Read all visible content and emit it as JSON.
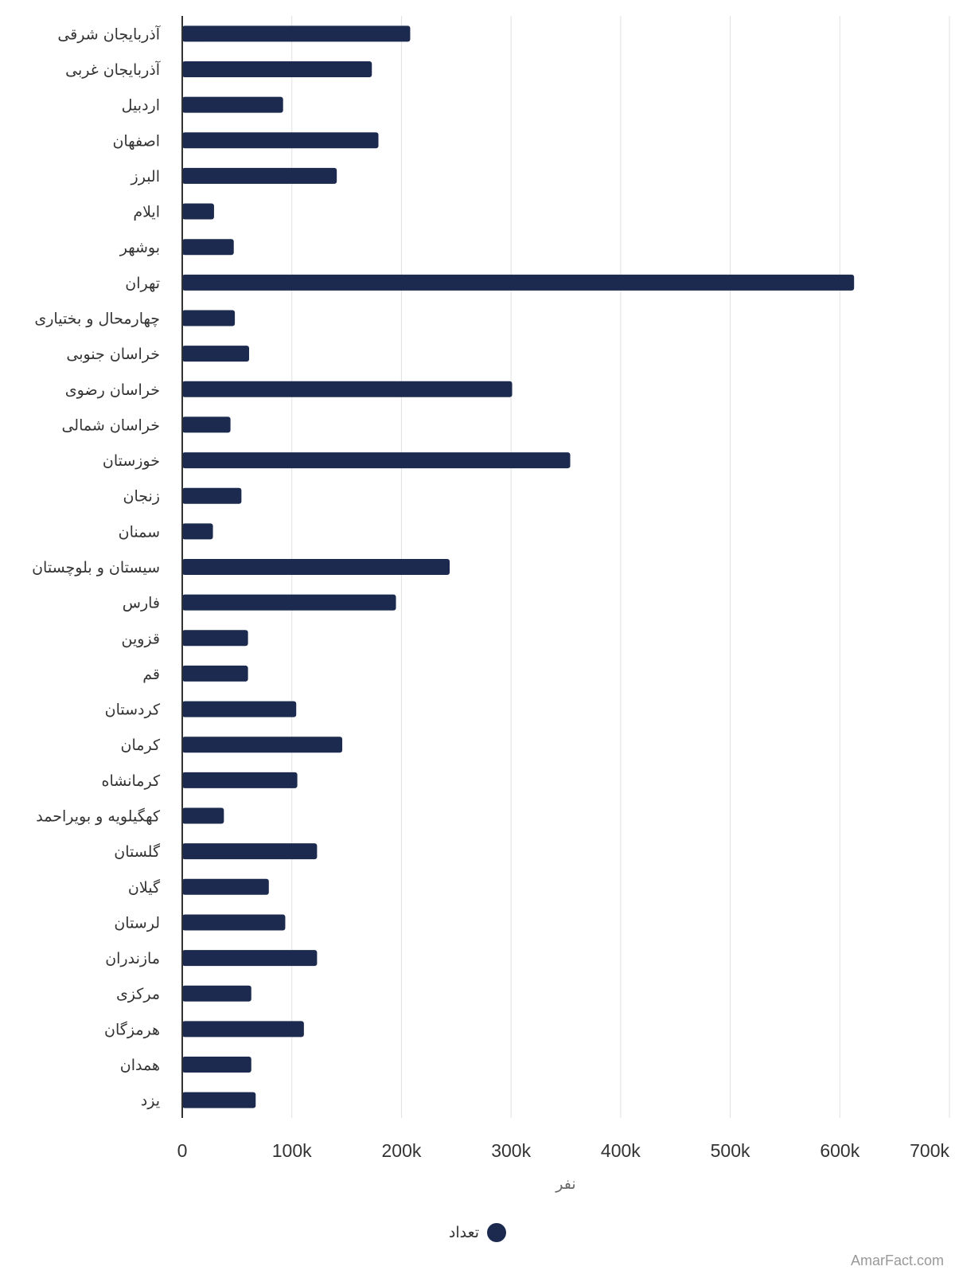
{
  "chart_data": {
    "type": "bar",
    "orientation": "horizontal",
    "categories": [
      "آذربایجان شرقی",
      "آذربایجان غربی",
      "اردبیل",
      "اصفهان",
      "البرز",
      "ایلام",
      "بوشهر",
      "تهران",
      "چهارمحال و بختیاری",
      "خراسان جنوبی",
      "خراسان رضوی",
      "خراسان شمالی",
      "خوزستان",
      "زنجان",
      "سمنان",
      "سیستان و بلوچستان",
      "فارس",
      "قزوین",
      "قم",
      "کردستان",
      "کرمان",
      "کرمانشاه",
      "کهگیلویه و بویراحمد",
      "گلستان",
      "گیلان",
      "لرستان",
      "مازندران",
      "مرکزی",
      "هرمزگان",
      "همدان",
      "یزد"
    ],
    "series": [
      {
        "name": "تعداد",
        "values": [
          208000,
          173000,
          92000,
          179000,
          141000,
          29000,
          47000,
          613000,
          48000,
          61000,
          301000,
          44000,
          354000,
          54000,
          28000,
          244000,
          195000,
          60000,
          60000,
          104000,
          146000,
          105000,
          38000,
          123000,
          79000,
          94000,
          123000,
          63000,
          111000,
          63000,
          67000
        ]
      }
    ],
    "xlabel": "نفر",
    "ylabel": "",
    "xlim": [
      0,
      700000
    ],
    "ticks": [
      "0",
      "100k",
      "200k",
      "300k",
      "400k",
      "500k",
      "600k",
      "700k"
    ],
    "grid": true,
    "legend": "bottom-center"
  },
  "colors": {
    "bar": "#1b2a4e",
    "grid": "#e1e1e1",
    "axis": "#333333"
  },
  "credit": "AmarFact.com"
}
